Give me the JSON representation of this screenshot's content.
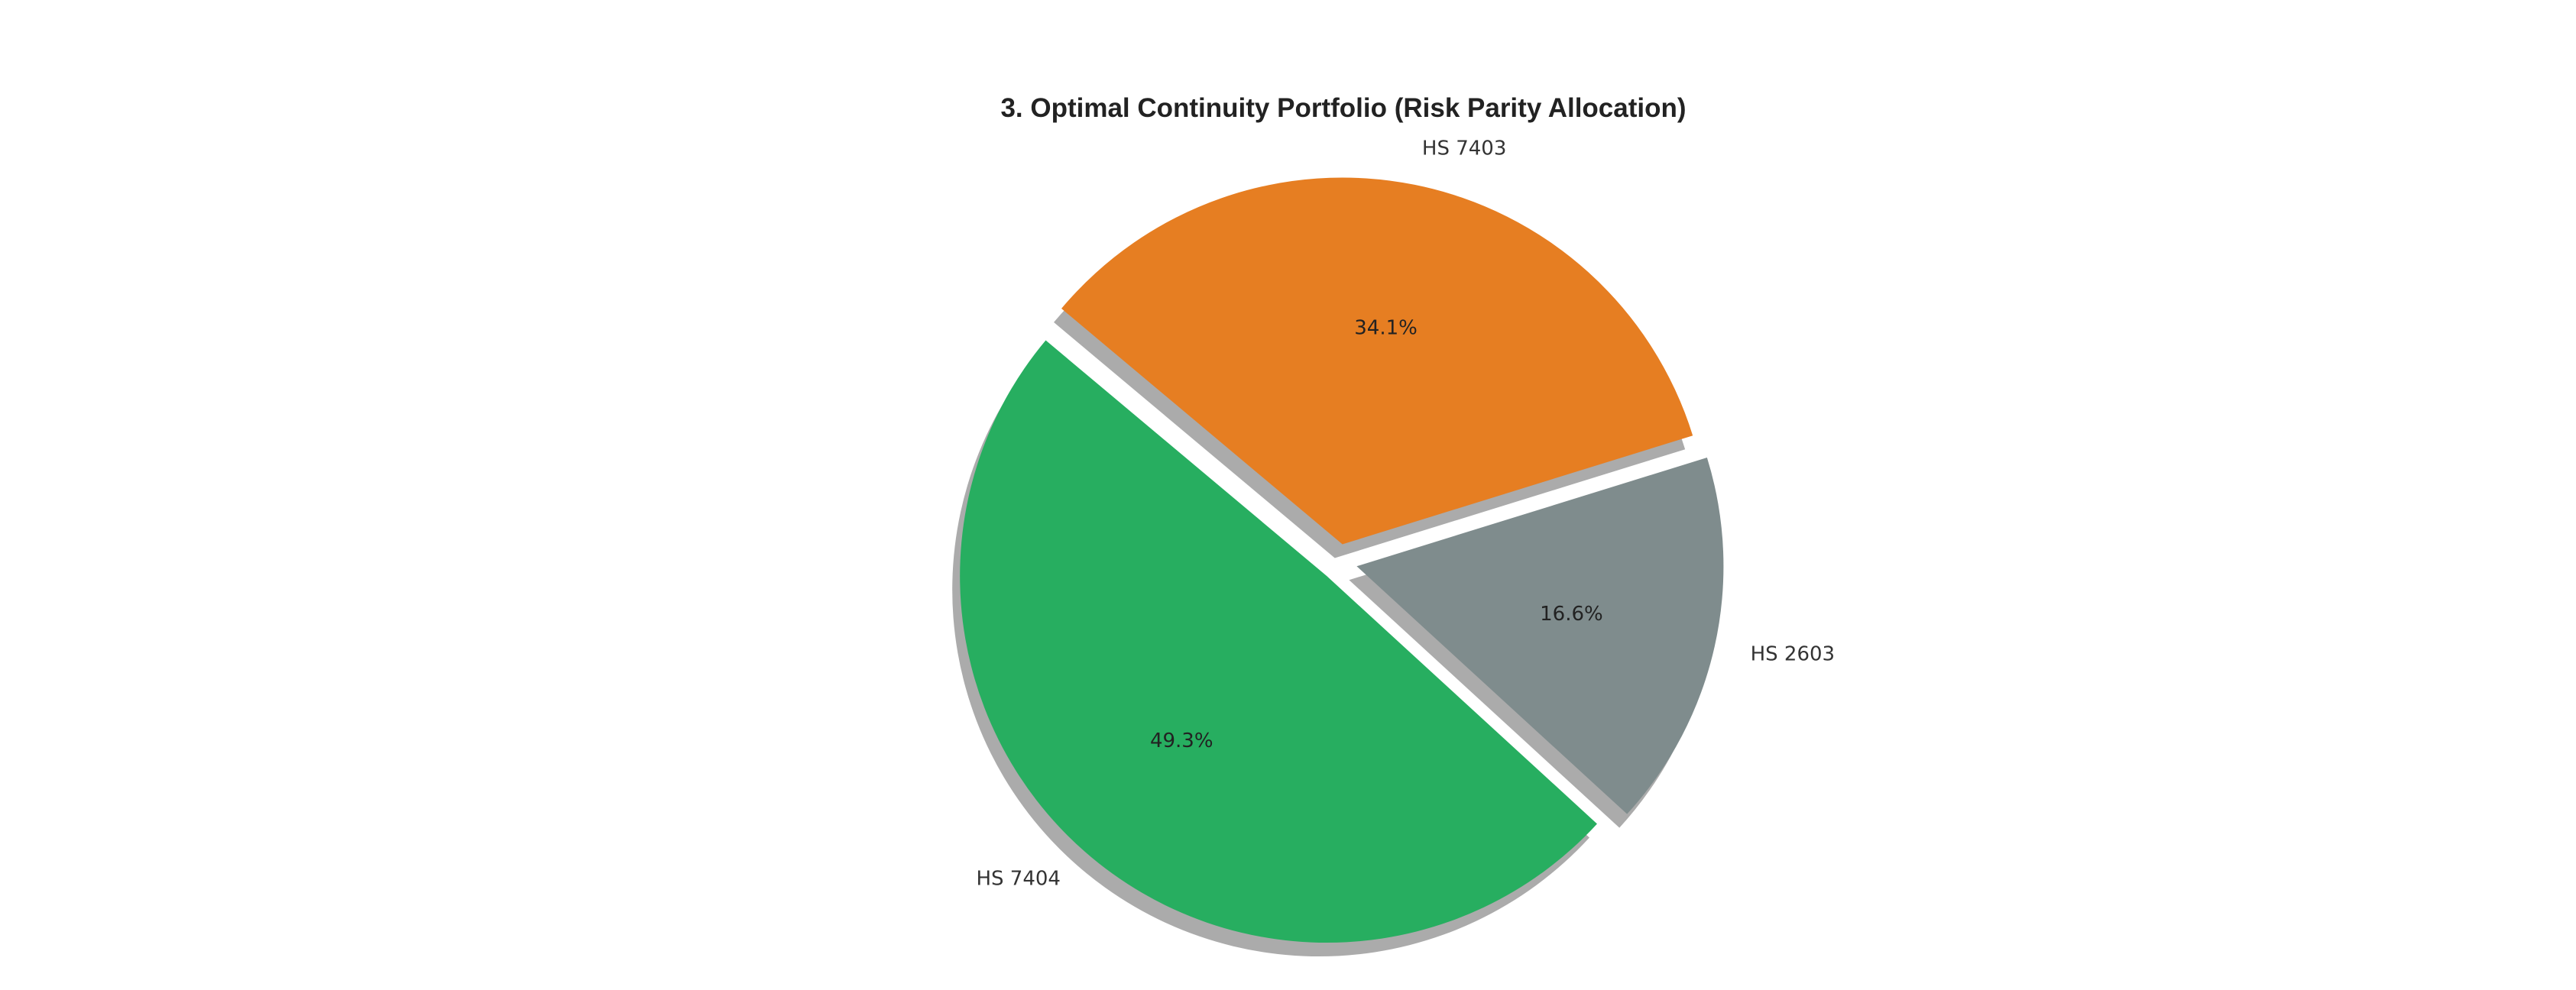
{
  "chart_data": {
    "type": "pie",
    "title": "3. Optimal Continuity Portfolio (Risk Parity Allocation)",
    "slices": [
      {
        "label": "HS 7404",
        "value": 49.3,
        "pct_label": "49.3%",
        "color": "#27ae60",
        "exploded": true
      },
      {
        "label": "HS 2603",
        "value": 16.6,
        "pct_label": "16.6%",
        "color": "#7f8c8d",
        "exploded": true
      },
      {
        "label": "HS 7403",
        "value": 34.1,
        "pct_label": "34.1%",
        "color": "#e67e22",
        "exploded": true
      }
    ],
    "shadow": true,
    "start_angle_deg": 140,
    "direction": "counterclockwise"
  }
}
